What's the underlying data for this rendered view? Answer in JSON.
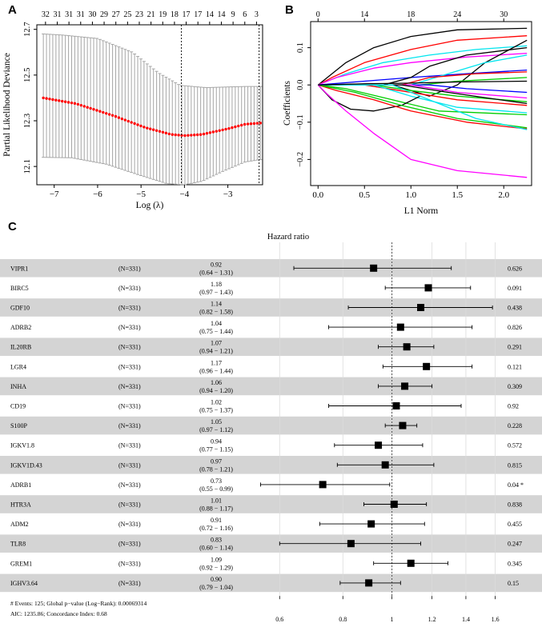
{
  "panel_labels": {
    "a": "A",
    "b": "B",
    "c": "C"
  },
  "chart_data": [
    {
      "panel": "A",
      "type": "line",
      "title": "",
      "xlabel": "Log (λ)",
      "ylabel": "Partial Likelihood Deviance",
      "xlim": [
        -7.4,
        -2.2
      ],
      "ylim": [
        12.02,
        12.72
      ],
      "xticks": [
        -7,
        -6,
        -5,
        -4,
        -3
      ],
      "yticks": [
        12.1,
        12.3,
        12.5,
        12.7
      ],
      "top_axis_positions": [
        -7.2,
        -6.93,
        -6.66,
        -6.39,
        -6.12,
        -5.85,
        -5.58,
        -5.31,
        -5.04,
        -4.77,
        -4.5,
        -4.23,
        -3.96,
        -3.69,
        -3.42,
        -3.15,
        -2.88,
        -2.61,
        -2.34
      ],
      "top_axis_labels": [
        "32",
        "31",
        "31",
        "31",
        "30",
        "29",
        "27",
        "25",
        "23",
        "21",
        "19",
        "18",
        "17",
        "17",
        "14",
        "14",
        "9",
        "6",
        "3"
      ],
      "vlines": [
        -4.07,
        -2.28
      ],
      "curve_x": [
        -7.25,
        -6.5,
        -5.6,
        -4.9,
        -4.3,
        -4.0,
        -3.6,
        -3.0,
        -2.6,
        -2.25
      ],
      "curve_y": [
        12.4,
        12.375,
        12.32,
        12.27,
        12.24,
        12.235,
        12.24,
        12.265,
        12.285,
        12.29
      ],
      "upper_x": [
        -7.25,
        -6.8,
        -6.0,
        -5.2,
        -4.6,
        -4.1,
        -3.5,
        -3.0,
        -2.6,
        -2.25
      ],
      "upper_y": [
        12.68,
        12.675,
        12.66,
        12.6,
        12.51,
        12.455,
        12.445,
        12.448,
        12.45,
        12.45
      ],
      "lower_x": [
        -7.25,
        -6.6,
        -5.8,
        -5.0,
        -4.4,
        -4.0,
        -3.6,
        -3.1,
        -2.6,
        -2.25
      ],
      "lower_y": [
        12.14,
        12.138,
        12.11,
        12.06,
        12.025,
        12.02,
        12.035,
        12.08,
        12.12,
        12.13
      ]
    },
    {
      "panel": "B",
      "type": "line",
      "title": "",
      "xlabel": "L1 Norm",
      "ylabel": "Coefficients",
      "xlim": [
        -0.08,
        2.3
      ],
      "ylim": [
        -0.27,
        0.17
      ],
      "xticks": [
        0.0,
        0.5,
        1.0,
        1.5,
        2.0
      ],
      "xtick_labels": [
        "0.0",
        "0.5",
        "1.0",
        "1.5",
        "2.0"
      ],
      "yticks": [
        -0.2,
        -0.1,
        0.0,
        0.1
      ],
      "ytick_labels": [
        "−0.2",
        "−0.1",
        "0.0",
        "0.1"
      ],
      "top_axis_positions": [
        0.0,
        0.5,
        1.0,
        1.5,
        2.0
      ],
      "top_axis_labels": [
        "0",
        "14",
        "18",
        "24",
        "30"
      ],
      "series": [
        {
          "name": "black-1",
          "color": "#000000",
          "x": [
            0,
            0.1,
            0.3,
            0.6,
            1.0,
            1.5,
            2.25
          ],
          "y": [
            0,
            0.02,
            0.06,
            0.1,
            0.13,
            0.148,
            0.152
          ]
        },
        {
          "name": "red-1",
          "color": "#ff0000",
          "x": [
            0,
            0.15,
            0.5,
            1.0,
            1.5,
            2.25
          ],
          "y": [
            0,
            0.02,
            0.06,
            0.095,
            0.12,
            0.132
          ]
        },
        {
          "name": "cyan-1",
          "color": "#00e5ee",
          "x": [
            0,
            0.3,
            0.7,
            1.2,
            1.7,
            2.25
          ],
          "y": [
            0,
            0.03,
            0.06,
            0.08,
            0.095,
            0.105
          ]
        },
        {
          "name": "magenta-1",
          "color": "#ff00ff",
          "x": [
            0,
            0.2,
            0.6,
            1.0,
            1.6,
            2.25
          ],
          "y": [
            0,
            0.02,
            0.045,
            0.06,
            0.075,
            0.085
          ]
        },
        {
          "name": "blue-1",
          "color": "#0000ff",
          "x": [
            0,
            0.5,
            1.0,
            1.6,
            2.25
          ],
          "y": [
            0,
            0.01,
            0.02,
            0.03,
            0.04
          ]
        },
        {
          "name": "black-2",
          "color": "#000000",
          "x": [
            0,
            0.8,
            1.2,
            1.5,
            1.8,
            2.25
          ],
          "y": [
            0,
            0,
            -0.03,
            0.0,
            0.06,
            0.12
          ]
        },
        {
          "name": "black-3",
          "color": "#000000",
          "x": [
            0,
            0.7,
            1.0,
            1.2,
            1.6,
            2.25
          ],
          "y": [
            0,
            0,
            0.02,
            0.05,
            0.08,
            0.1
          ]
        },
        {
          "name": "cyan-2",
          "color": "#00e5ee",
          "x": [
            0,
            1.0,
            1.4,
            1.8,
            2.25
          ],
          "y": [
            0,
            0,
            0.03,
            0.06,
            0.08
          ]
        },
        {
          "name": "red-2",
          "color": "#ff0000",
          "x": [
            0,
            0.9,
            1.2,
            1.7,
            2.25
          ],
          "y": [
            0,
            0,
            0.02,
            0.03,
            0.035
          ]
        },
        {
          "name": "green-1",
          "color": "#00cd00",
          "x": [
            0,
            1.1,
            1.5,
            2.25
          ],
          "y": [
            0,
            0,
            0.01,
            0.02
          ]
        },
        {
          "name": "blue-2",
          "color": "#0000ff",
          "x": [
            0,
            1.2,
            1.6,
            2.25
          ],
          "y": [
            0,
            0,
            -0.01,
            -0.02
          ]
        },
        {
          "name": "magenta-2",
          "color": "#ff00ff",
          "x": [
            0,
            1.0,
            1.5,
            2.25
          ],
          "y": [
            0,
            0,
            -0.02,
            -0.035
          ]
        },
        {
          "name": "green-2",
          "color": "#00cd00",
          "x": [
            0,
            0.6,
            1.0,
            1.5,
            2.25
          ],
          "y": [
            0,
            0,
            -0.015,
            -0.03,
            -0.045
          ]
        },
        {
          "name": "black-4",
          "color": "#000000",
          "x": [
            0,
            0.9,
            1.4,
            2.25
          ],
          "y": [
            0,
            0,
            -0.02,
            -0.05
          ]
        },
        {
          "name": "red-3",
          "color": "#ff0000",
          "x": [
            0,
            0.5,
            1.0,
            1.5,
            2.25
          ],
          "y": [
            0,
            0,
            -0.02,
            -0.04,
            -0.055
          ]
        },
        {
          "name": "cyan-3",
          "color": "#00e5ee",
          "x": [
            0,
            0.6,
            1.0,
            1.5,
            2.25
          ],
          "y": [
            0,
            0,
            -0.03,
            -0.06,
            -0.075
          ]
        },
        {
          "name": "green-3",
          "color": "#00cd00",
          "x": [
            0,
            0.3,
            0.8,
            1.3,
            2.25
          ],
          "y": [
            0,
            -0.01,
            -0.04,
            -0.07,
            -0.08
          ]
        },
        {
          "name": "black-5",
          "color": "#000000",
          "x": [
            0,
            0.15,
            0.35,
            0.6,
            0.9,
            1.1
          ],
          "y": [
            0,
            -0.04,
            -0.065,
            -0.07,
            -0.055,
            -0.03
          ]
        },
        {
          "name": "red-4",
          "color": "#ff0000",
          "x": [
            0,
            0.2,
            0.6,
            1.0,
            1.6,
            2.25
          ],
          "y": [
            0,
            -0.015,
            -0.04,
            -0.07,
            -0.1,
            -0.118
          ]
        },
        {
          "name": "green-4",
          "color": "#00cd00",
          "x": [
            0,
            0.4,
            0.9,
            1.5,
            2.25
          ],
          "y": [
            0,
            -0.02,
            -0.055,
            -0.09,
            -0.115
          ]
        },
        {
          "name": "cyan-4",
          "color": "#00e5ee",
          "x": [
            0,
            0.8,
            1.2,
            1.7,
            2.25
          ],
          "y": [
            0,
            0,
            -0.04,
            -0.09,
            -0.12
          ]
        },
        {
          "name": "magenta-3",
          "color": "#ff00ff",
          "x": [
            0,
            0.1,
            0.3,
            0.6,
            1.0,
            1.5,
            2.25
          ],
          "y": [
            0,
            -0.025,
            -0.07,
            -0.13,
            -0.2,
            -0.23,
            -0.248
          ]
        },
        {
          "name": "black-6",
          "color": "#000000",
          "x": [
            0,
            0.5,
            1.0,
            1.5,
            2.25
          ],
          "y": [
            0,
            0.003,
            0.005,
            0.008,
            0.01
          ]
        }
      ]
    },
    {
      "panel": "C",
      "type": "forest",
      "title": "Hazard ratio",
      "x_scale": "log",
      "xlim": [
        0.52,
        1.68
      ],
      "xticks": [
        0.6,
        0.8,
        1,
        1.2,
        1.4,
        1.6
      ],
      "xtick_labels": [
        "0.6",
        "0.8",
        "1",
        "1.2",
        "1.4",
        "1.6"
      ],
      "reference_line": 1,
      "rows": [
        {
          "gene": "VIPR1",
          "n": "(N=331)",
          "hr": "0.92",
          "ci": "(0.64 − 1.31)",
          "p": "0.626",
          "hr_val": 0.92,
          "lo": 0.64,
          "hi": 1.31
        },
        {
          "gene": "BIRC5",
          "n": "(N=331)",
          "hr": "1.18",
          "ci": "(0.97 − 1.43)",
          "p": "0.091",
          "hr_val": 1.18,
          "lo": 0.97,
          "hi": 1.43
        },
        {
          "gene": "GDF10",
          "n": "(N=331)",
          "hr": "1.14",
          "ci": "(0.82 − 1.58)",
          "p": "0.438",
          "hr_val": 1.14,
          "lo": 0.82,
          "hi": 1.58
        },
        {
          "gene": "ADRB2",
          "n": "(N=331)",
          "hr": "1.04",
          "ci": "(0.75 − 1.44)",
          "p": "0.826",
          "hr_val": 1.04,
          "lo": 0.75,
          "hi": 1.44
        },
        {
          "gene": "IL20RB",
          "n": "(N=331)",
          "hr": "1.07",
          "ci": "(0.94 − 1.21)",
          "p": "0.291",
          "hr_val": 1.07,
          "lo": 0.94,
          "hi": 1.21
        },
        {
          "gene": "LGR4",
          "n": "(N=331)",
          "hr": "1.17",
          "ci": "(0.96 − 1.44)",
          "p": "0.121",
          "hr_val": 1.17,
          "lo": 0.96,
          "hi": 1.44
        },
        {
          "gene": "INHA",
          "n": "(N=331)",
          "hr": "1.06",
          "ci": "(0.94 − 1.20)",
          "p": "0.309",
          "hr_val": 1.06,
          "lo": 0.94,
          "hi": 1.2
        },
        {
          "gene": "CD19",
          "n": "(N=331)",
          "hr": "1.02",
          "ci": "(0.75 − 1.37)",
          "p": "0.92",
          "hr_val": 1.02,
          "lo": 0.75,
          "hi": 1.37
        },
        {
          "gene": "S100P",
          "n": "(N=331)",
          "hr": "1.05",
          "ci": "(0.97 − 1.12)",
          "p": "0.228",
          "hr_val": 1.05,
          "lo": 0.97,
          "hi": 1.12
        },
        {
          "gene": "IGKV1.8",
          "n": "(N=331)",
          "hr": "0.94",
          "ci": "(0.77 − 1.15)",
          "p": "0.572",
          "hr_val": 0.94,
          "lo": 0.77,
          "hi": 1.15
        },
        {
          "gene": "IGKV1D.43",
          "n": "(N=331)",
          "hr": "0.97",
          "ci": "(0.78 − 1.21)",
          "p": "0.815",
          "hr_val": 0.97,
          "lo": 0.78,
          "hi": 1.21
        },
        {
          "gene": "ADRB1",
          "n": "(N=331)",
          "hr": "0.73",
          "ci": "(0.55 − 0.99)",
          "p": "0.04 *",
          "hr_val": 0.73,
          "lo": 0.55,
          "hi": 0.99
        },
        {
          "gene": "HTR3A",
          "n": "(N=331)",
          "hr": "1.01",
          "ci": "(0.88 − 1.17)",
          "p": "0.838",
          "hr_val": 1.01,
          "lo": 0.88,
          "hi": 1.17
        },
        {
          "gene": "ADM2",
          "n": "(N=331)",
          "hr": "0.91",
          "ci": "(0.72 − 1.16)",
          "p": "0.455",
          "hr_val": 0.91,
          "lo": 0.72,
          "hi": 1.16
        },
        {
          "gene": "TLR8",
          "n": "(N=331)",
          "hr": "0.83",
          "ci": "(0.60 − 1.14)",
          "p": "0.247",
          "hr_val": 0.83,
          "lo": 0.6,
          "hi": 1.14
        },
        {
          "gene": "GREM1",
          "n": "(N=331)",
          "hr": "1.09",
          "ci": "(0.92 − 1.29)",
          "p": "0.345",
          "hr_val": 1.09,
          "lo": 0.92,
          "hi": 1.29
        },
        {
          "gene": "IGHV3.64",
          "n": "(N=331)",
          "hr": "0.90",
          "ci": "(0.79 − 1.04)",
          "p": "0.15",
          "hr_val": 0.9,
          "lo": 0.79,
          "hi": 1.04
        }
      ],
      "footnote_line1": "# Events: 125; Global p−value (Log−Rank): 0.00069314",
      "footnote_line2": "AIC: 1235.86; Concordance Index: 0.68"
    }
  ],
  "colors": {
    "ci_grey": "#a6a6a6",
    "fit_red": "#ff0000",
    "row_shade": "#d4d4d4"
  }
}
